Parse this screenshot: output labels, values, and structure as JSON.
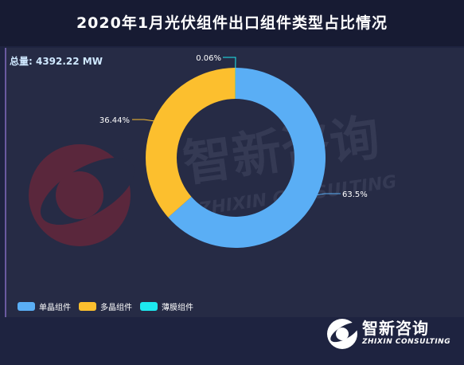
{
  "title": "2020年1月光伏组件出口组件类型占比情况",
  "total_label": "总量: 4392.22 MW",
  "watermark": {
    "name": "智新咨询",
    "sub": "ZHIXIN CONSULTING"
  },
  "footer": {
    "name": "智新咨询",
    "sub": "ZHIXIN CONSULTING"
  },
  "colors": {
    "background": "#1e2340",
    "panel": "#262b45"
  },
  "chart_data": {
    "type": "pie",
    "donut": true,
    "title": "2020年1月光伏组件出口组件类型占比情况",
    "unit": "%",
    "legend_position": "bottom-left",
    "slices": [
      {
        "name": "单晶组件",
        "value": 63.5,
        "label": "63.5%",
        "color": "#5aaef5"
      },
      {
        "name": "多晶组件",
        "value": 36.44,
        "label": "36.44%",
        "color": "#fcbf2e"
      },
      {
        "name": "薄膜组件",
        "value": 0.06,
        "label": "0.06%",
        "color": "#1de9f0"
      }
    ]
  }
}
